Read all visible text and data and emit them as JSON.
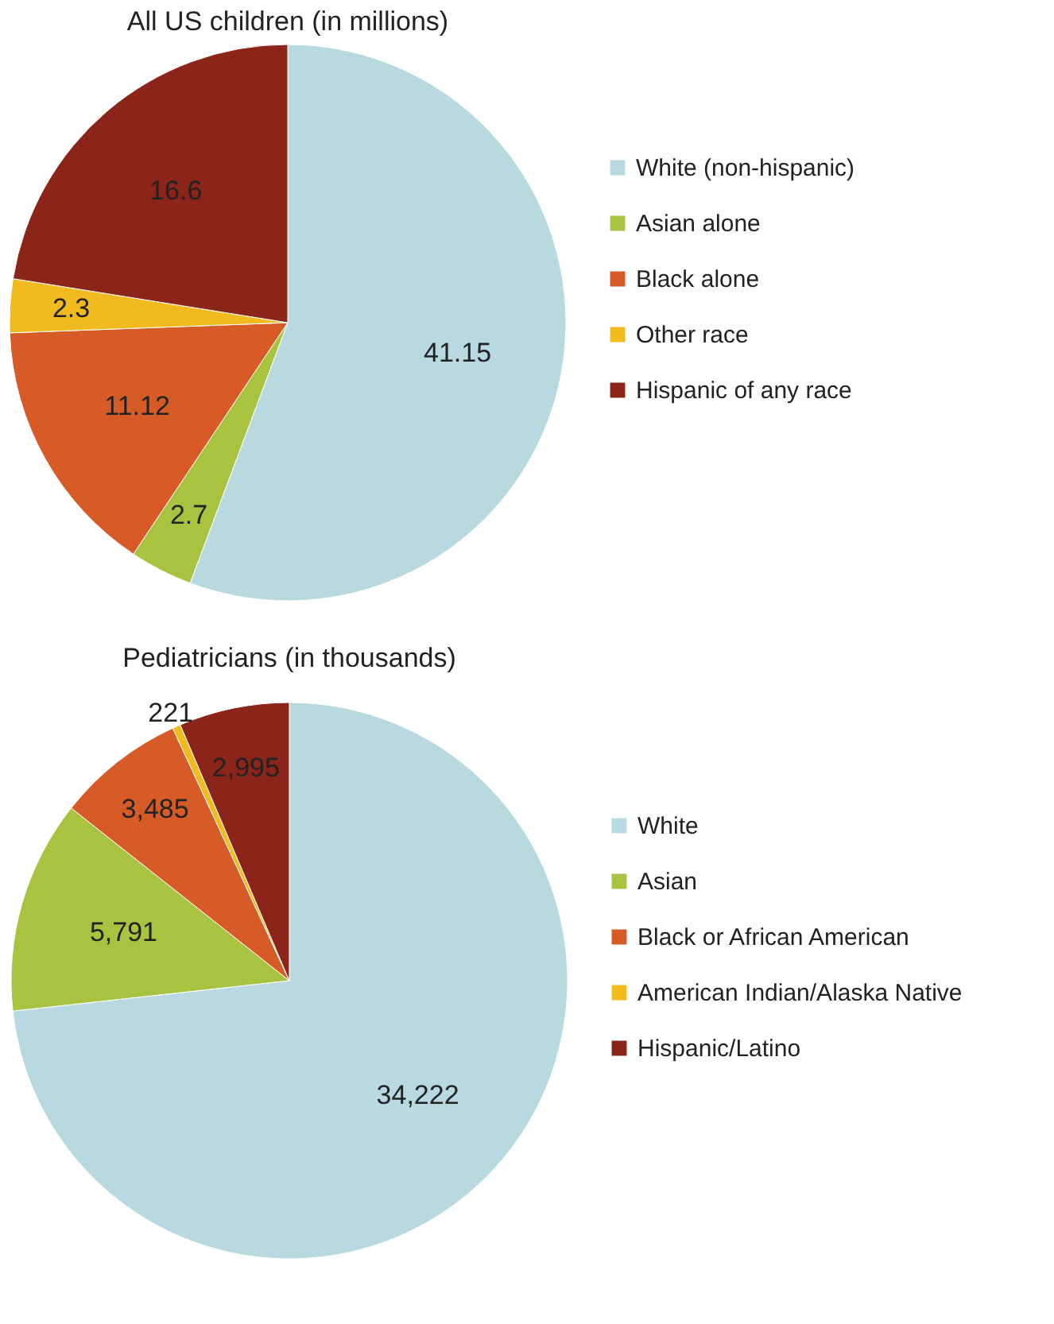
{
  "chart_data": [
    {
      "type": "pie",
      "title": "All US children (in millions)",
      "categories": [
        "White (non-hispanic)",
        "Asian alone",
        "Black alone",
        "Other race",
        "Hispanic of any race"
      ],
      "values": [
        41.15,
        2.7,
        11.12,
        2.3,
        16.6
      ],
      "colors": [
        "#b9d9e0",
        "#a9c23f",
        "#d75b27",
        "#f1bb1f",
        "#8b2519"
      ],
      "data_labels": true,
      "legend": "right"
    },
    {
      "type": "pie",
      "title": "Pediatricians (in thousands)",
      "categories": [
        "White",
        "Asian",
        "Black or African American",
        "American Indian/Alaska Native",
        "Hispanic/Latino"
      ],
      "values": [
        34222,
        5791,
        3485,
        221,
        2995
      ],
      "colors": [
        "#b9d9e0",
        "#a9c23f",
        "#d75b27",
        "#f1bb1f",
        "#8b2519"
      ],
      "value_labels": [
        "34,222",
        "5,791",
        "3,485",
        "221",
        "2,995"
      ],
      "legend": "right"
    }
  ]
}
